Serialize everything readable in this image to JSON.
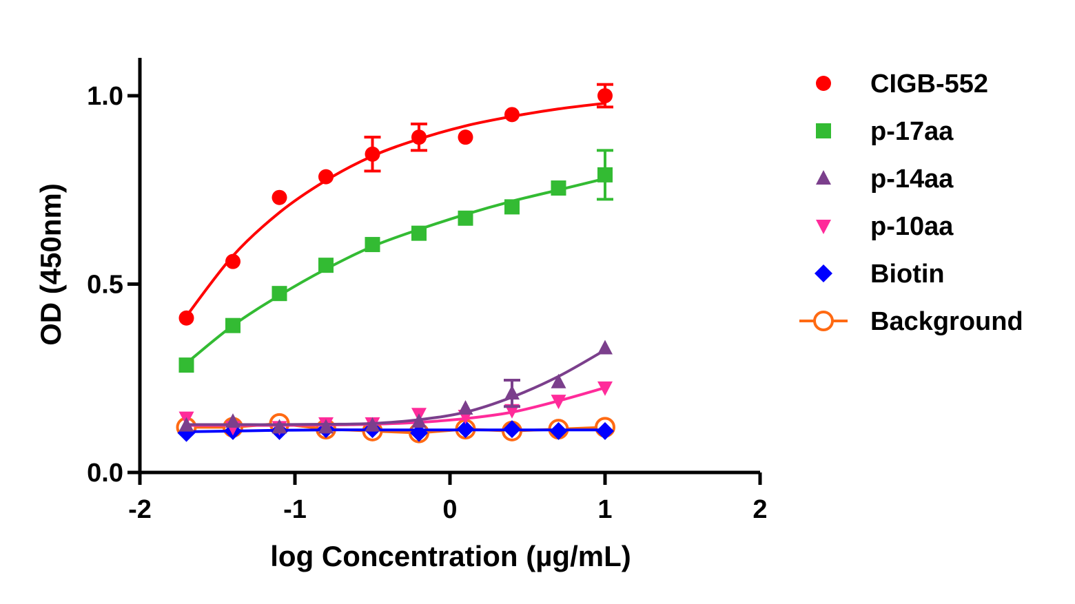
{
  "chart_data": {
    "type": "scatter",
    "title": "",
    "xlabel": "log Concentration (µg/mL)",
    "ylabel": "OD (450nm)",
    "xlim": [
      -2,
      2
    ],
    "ylim": [
      0,
      1.1
    ],
    "x_ticks": [
      -2,
      -1,
      0,
      1,
      2
    ],
    "x_tick_labels": [
      "-2",
      "-1",
      "0",
      "1",
      "2"
    ],
    "y_ticks": [
      0,
      0.5,
      1.0
    ],
    "y_tick_labels": [
      "0.0",
      "0.5",
      "1.0"
    ],
    "grid": false,
    "legend_position": "right",
    "x": [
      -1.7,
      -1.4,
      -1.1,
      -0.8,
      -0.5,
      -0.2,
      0.1,
      0.4,
      0.7,
      1.0
    ],
    "series": [
      {
        "name": "CIGB-552",
        "color": "#ff0000",
        "marker": "circle",
        "values": [
          0.41,
          0.56,
          0.73,
          0.785,
          0.845,
          0.89,
          0.89,
          0.95,
          null,
          1.0
        ],
        "error": [
          0,
          0,
          0,
          0,
          0.045,
          0.035,
          0,
          0,
          0,
          0.03
        ],
        "fit": [
          0.415,
          0.575,
          0.69,
          0.775,
          0.84,
          0.885,
          0.92,
          0.945,
          0.965,
          0.98
        ]
      },
      {
        "name": "p-17aa",
        "color": "#33bb33",
        "marker": "square",
        "values": [
          0.285,
          0.39,
          0.475,
          0.55,
          0.605,
          0.635,
          0.675,
          0.705,
          0.755,
          0.79
        ],
        "error": [
          0,
          0,
          0,
          0,
          0,
          0,
          0,
          0,
          0,
          0.065
        ],
        "fit": [
          0.29,
          0.39,
          0.47,
          0.54,
          0.6,
          0.645,
          0.685,
          0.72,
          0.75,
          0.78
        ]
      },
      {
        "name": "p-14aa",
        "color": "#7b3f8c",
        "marker": "triangle-up",
        "values": [
          0.125,
          0.135,
          0.12,
          0.12,
          0.125,
          0.135,
          0.17,
          0.21,
          0.24,
          0.33
        ],
        "error": [
          0,
          0,
          0,
          0,
          0,
          0,
          0,
          0.035,
          0,
          0
        ],
        "fit": [
          0.127,
          0.127,
          0.127,
          0.128,
          0.13,
          0.14,
          0.16,
          0.2,
          0.255,
          0.325
        ]
      },
      {
        "name": "p-10aa",
        "color": "#ff2b9a",
        "marker": "triangle-down",
        "values": [
          0.145,
          0.12,
          0.12,
          0.13,
          0.13,
          0.155,
          0.15,
          0.165,
          0.19,
          0.225
        ],
        "error": [
          0,
          0,
          0,
          0,
          0,
          0,
          0,
          0,
          0,
          0
        ],
        "fit": [
          0.125,
          0.125,
          0.125,
          0.126,
          0.128,
          0.133,
          0.143,
          0.16,
          0.19,
          0.225
        ]
      },
      {
        "name": "Biotin",
        "color": "#0000ff",
        "marker": "diamond",
        "values": [
          0.105,
          0.11,
          0.11,
          0.115,
          0.115,
          0.105,
          0.115,
          0.115,
          0.11,
          0.11
        ],
        "error": [
          0,
          0,
          0,
          0,
          0,
          0,
          0,
          0,
          0,
          0
        ],
        "fit": [
          0.108,
          0.11,
          0.112,
          0.113,
          0.113,
          0.113,
          0.113,
          0.113,
          0.113,
          0.113
        ]
      },
      {
        "name": "Background",
        "color": "#ff6a13",
        "marker": "open-circle",
        "values": [
          0.12,
          0.12,
          0.13,
          0.115,
          0.11,
          0.105,
          0.115,
          0.11,
          0.115,
          0.12
        ],
        "error": [
          0,
          0,
          0,
          0,
          0,
          0,
          0,
          0,
          0,
          0
        ],
        "connect": "segments"
      }
    ]
  }
}
